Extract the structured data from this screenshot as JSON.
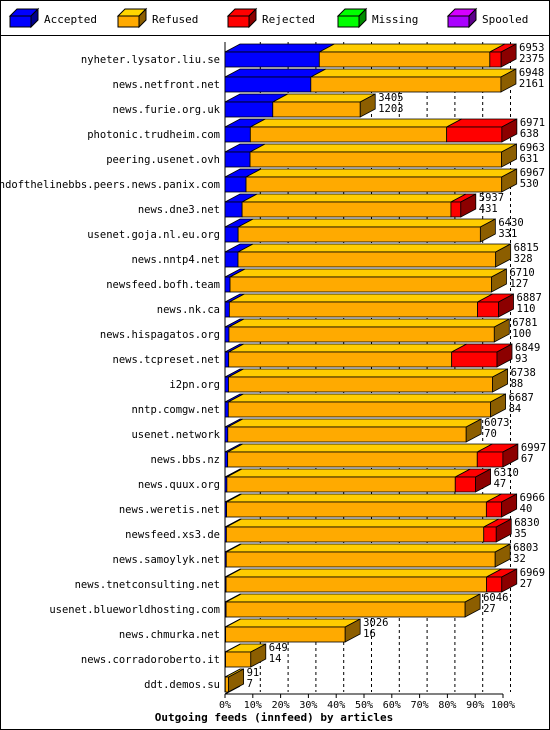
{
  "chart_data": {
    "type": "bar",
    "orientation": "horizontal",
    "stacked": true,
    "percent_axis": true,
    "title": "Outgoing feeds (innfeed) by articles",
    "legend_placement": "top",
    "x_ticks": [
      "0%",
      "10%",
      "20%",
      "30%",
      "40%",
      "50%",
      "60%",
      "70%",
      "80%",
      "90%",
      "100%"
    ],
    "legend": [
      {
        "name": "Accepted",
        "color": "#0000ff"
      },
      {
        "name": "Refused",
        "color": "#ffaa00"
      },
      {
        "name": "Rejected",
        "color": "#ff0000"
      },
      {
        "name": "Missing",
        "color": "#00ff00"
      },
      {
        "name": "Spooled",
        "color": "#aa00ff"
      }
    ],
    "rows": [
      {
        "host": "nyheter.lysator.liu.se",
        "total": 6953,
        "accepted": 2375,
        "rejected": 285,
        "spooled": 0
      },
      {
        "host": "news.netfront.net",
        "total": 6948,
        "accepted": 2161,
        "rejected": 0,
        "spooled": 0
      },
      {
        "host": "news.furie.org.uk",
        "total": 3405,
        "accepted": 1203,
        "rejected": 0,
        "spooled": 0
      },
      {
        "host": "photonic.trudheim.com",
        "total": 6971,
        "accepted": 638,
        "rejected": 1390,
        "spooled": 0
      },
      {
        "host": "peering.usenet.ovh",
        "total": 6963,
        "accepted": 631,
        "rejected": 0,
        "spooled": 0
      },
      {
        "host": "endofthelinebbs.peers.news.panix.com",
        "total": 6967,
        "accepted": 530,
        "rejected": 0,
        "spooled": 0
      },
      {
        "host": "news.dne3.net",
        "total": 5937,
        "accepted": 431,
        "rejected": 248,
        "spooled": 0
      },
      {
        "host": "usenet.goja.nl.eu.org",
        "total": 6430,
        "accepted": 331,
        "rejected": 0,
        "spooled": 0
      },
      {
        "host": "news.nntp4.net",
        "total": 6815,
        "accepted": 328,
        "rejected": 0,
        "spooled": 0
      },
      {
        "host": "newsfeed.bofh.team",
        "total": 6710,
        "accepted": 127,
        "rejected": 0,
        "spooled": 0
      },
      {
        "host": "news.nk.ca",
        "total": 6887,
        "accepted": 110,
        "rejected": 528,
        "spooled": 0
      },
      {
        "host": "news.hispagatos.org",
        "total": 6781,
        "accepted": 100,
        "rejected": 0,
        "spooled": 0
      },
      {
        "host": "news.tcpreset.net",
        "total": 6849,
        "accepted": 93,
        "rejected": 1142,
        "spooled": 0
      },
      {
        "host": "i2pn.org",
        "total": 6738,
        "accepted": 88,
        "rejected": 0,
        "spooled": 0
      },
      {
        "host": "nntp.comgw.net",
        "total": 6687,
        "accepted": 84,
        "rejected": 0,
        "spooled": 0
      },
      {
        "host": "usenet.network",
        "total": 6073,
        "accepted": 70,
        "rejected": 0,
        "spooled": 0
      },
      {
        "host": "news.bbs.nz",
        "total": 6997,
        "accepted": 67,
        "rejected": 645,
        "spooled": 0
      },
      {
        "host": "news.quux.org",
        "total": 6310,
        "accepted": 47,
        "rejected": 512,
        "spooled": 0
      },
      {
        "host": "news.weretis.net",
        "total": 6966,
        "accepted": 40,
        "rejected": 385,
        "spooled": 0
      },
      {
        "host": "newsfeed.xs3.de",
        "total": 6830,
        "accepted": 35,
        "rejected": 315,
        "spooled": 0
      },
      {
        "host": "news.samoylyk.net",
        "total": 6803,
        "accepted": 32,
        "rejected": 0,
        "spooled": 0
      },
      {
        "host": "news.tnetconsulting.net",
        "total": 6969,
        "accepted": 27,
        "rejected": 385,
        "spooled": 0
      },
      {
        "host": "usenet.blueworldhosting.com",
        "total": 6046,
        "accepted": 27,
        "rejected": 0,
        "spooled": 0
      },
      {
        "host": "news.chmurka.net",
        "total": 3026,
        "accepted": 16,
        "rejected": 0,
        "spooled": 0
      },
      {
        "host": "news.corradoroberto.it",
        "total": 649,
        "accepted": 14,
        "rejected": 0,
        "spooled": 0
      },
      {
        "host": "ddt.demos.su",
        "total": 91,
        "accepted": 7,
        "rejected": 0,
        "spooled": 0
      }
    ]
  }
}
